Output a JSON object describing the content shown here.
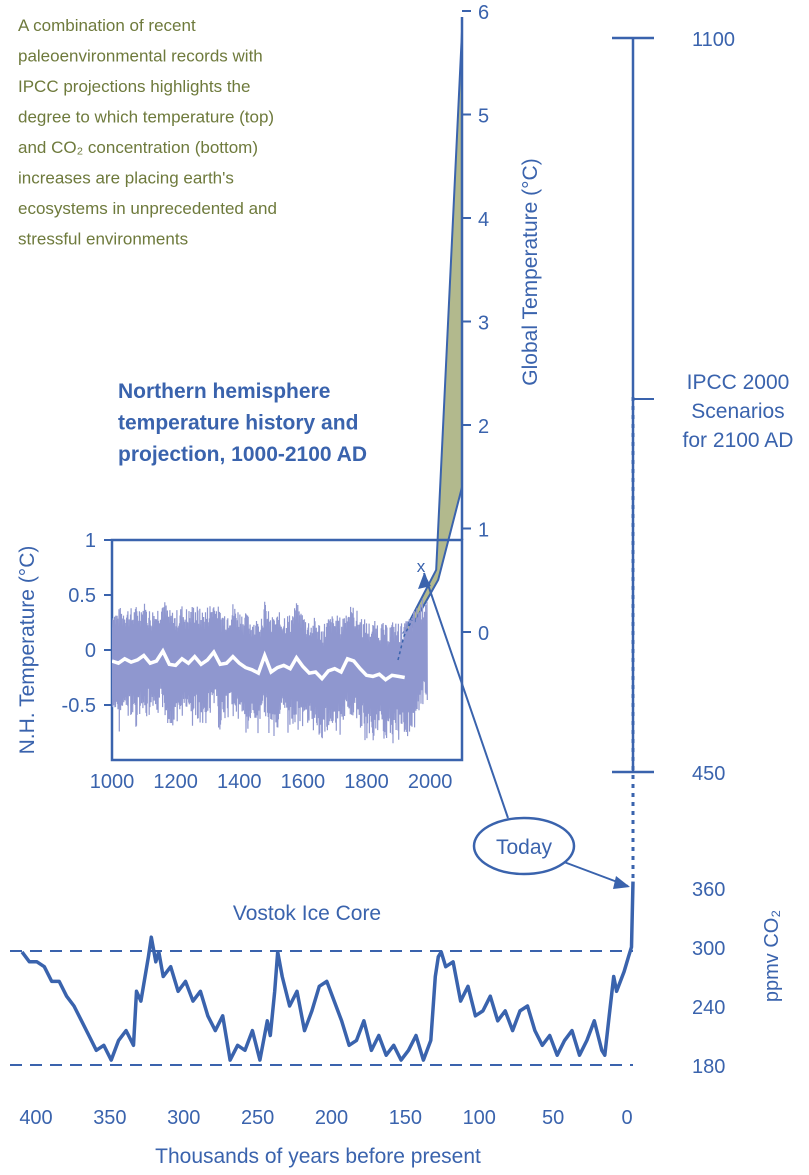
{
  "caption_lines": [
    "A combination of recent",
    "paleoenvironmental records with",
    "IPCC projections highlights the",
    "degree to which temperature (top)",
    "and CO₂ concentration (bottom)",
    "increases are placing earth's",
    "ecosystems in unprecedented and",
    "stressful environments"
  ],
  "colors": {
    "axis_blue": "#3a63ad",
    "caption_olive": "#6e7a3c",
    "band_purple": "#8f97cf",
    "projection_fill": "#b2b98d"
  },
  "chart_data": [
    {
      "type": "line",
      "title": "Northern hemisphere temperature history and projection, 1000-2100 AD",
      "title_lines": [
        "Northern hemisphere",
        "temperature history and",
        "projection, 1000-2100 AD"
      ],
      "xlabel": "",
      "ylabel": "N.H. Temperature (°C)",
      "y2label": "Global Temperature (°C)",
      "xlim": [
        1000,
        2100
      ],
      "ylim": [
        -1,
        1
      ],
      "x_ticks": [
        "1000",
        "1200",
        "1400",
        "1600",
        "1800",
        "2000"
      ],
      "y_ticks": [
        "1",
        "0.5",
        "0",
        "-0.5"
      ],
      "y2_ticks": [
        "6",
        "5",
        "4",
        "3",
        "2",
        "1",
        "0"
      ],
      "smoothed_series": {
        "x": [
          1000,
          1020,
          1040,
          1060,
          1080,
          1100,
          1120,
          1140,
          1160,
          1180,
          1200,
          1220,
          1240,
          1260,
          1280,
          1300,
          1320,
          1340,
          1360,
          1380,
          1400,
          1420,
          1440,
          1460,
          1480,
          1500,
          1520,
          1540,
          1560,
          1580,
          1600,
          1620,
          1640,
          1660,
          1680,
          1700,
          1720,
          1740,
          1760,
          1780,
          1800,
          1820,
          1840,
          1860,
          1880,
          1900,
          1920
        ],
        "values": [
          -0.1,
          -0.12,
          -0.08,
          -0.11,
          -0.09,
          -0.05,
          -0.12,
          -0.1,
          -0.01,
          -0.13,
          -0.14,
          -0.08,
          -0.12,
          -0.06,
          -0.13,
          -0.09,
          -0.02,
          -0.13,
          -0.12,
          -0.06,
          -0.12,
          -0.16,
          -0.18,
          -0.21,
          -0.05,
          -0.2,
          -0.16,
          -0.14,
          -0.17,
          -0.07,
          -0.15,
          -0.21,
          -0.2,
          -0.26,
          -0.19,
          -0.17,
          -0.2,
          -0.08,
          -0.1,
          -0.17,
          -0.23,
          -0.24,
          -0.22,
          -0.27,
          -0.23,
          -0.24,
          -0.25
        ]
      },
      "projection_band": {
        "x": [
          2000,
          2100
        ],
        "global_low": [
          0.6,
          1.4
        ],
        "global_high": [
          0.6,
          5.8
        ]
      },
      "today_marker": "x"
    },
    {
      "type": "line",
      "title": "Vostok Ice Core",
      "xlabel": "Thousands of years before present",
      "ylabel": "ppmv CO₂",
      "xlim": [
        410,
        -5
      ],
      "x_ticks": [
        "400",
        "350",
        "300",
        "250",
        "200",
        "150",
        "100",
        "50",
        "0"
      ],
      "y_ticks": [
        "1100",
        "450",
        "360",
        "300",
        "240",
        "180"
      ],
      "reference_lines": [
        300,
        180
      ],
      "series": {
        "x": [
          410,
          405,
          400,
          395,
          390,
          385,
          380,
          375,
          370,
          365,
          360,
          355,
          350,
          345,
          340,
          335,
          333,
          330,
          325,
          323,
          320,
          318,
          315,
          310,
          305,
          300,
          295,
          290,
          285,
          280,
          275,
          270,
          265,
          260,
          255,
          250,
          245,
          243,
          240,
          238,
          235,
          230,
          225,
          220,
          215,
          210,
          205,
          200,
          195,
          190,
          185,
          180,
          175,
          170,
          165,
          160,
          155,
          150,
          145,
          140,
          135,
          132,
          130,
          128,
          125,
          120,
          115,
          110,
          105,
          100,
          95,
          90,
          85,
          80,
          75,
          70,
          65,
          60,
          55,
          50,
          45,
          40,
          35,
          30,
          25,
          20,
          18,
          15,
          12,
          10,
          5,
          2,
          0,
          -1
        ],
        "values": [
          295,
          285,
          285,
          280,
          265,
          265,
          250,
          240,
          225,
          210,
          195,
          200,
          185,
          205,
          215,
          200,
          255,
          245,
          290,
          310,
          285,
          295,
          270,
          280,
          255,
          265,
          245,
          255,
          230,
          215,
          230,
          185,
          200,
          195,
          215,
          185,
          225,
          210,
          255,
          295,
          270,
          240,
          255,
          215,
          235,
          260,
          265,
          245,
          225,
          200,
          205,
          225,
          195,
          210,
          190,
          200,
          185,
          195,
          210,
          185,
          205,
          270,
          290,
          295,
          280,
          285,
          245,
          260,
          230,
          235,
          250,
          225,
          235,
          215,
          235,
          240,
          215,
          200,
          210,
          190,
          205,
          215,
          190,
          205,
          225,
          195,
          190,
          230,
          270,
          255,
          275,
          290,
          300,
          365
        ],
        "future_dotted_to": 450
      },
      "ipcc_scenarios": {
        "label_lines": [
          "IPCC 2000",
          "Scenarios",
          "for 2100 AD"
        ],
        "range": [
          450,
          1100
        ]
      },
      "annotation": "Today"
    }
  ]
}
